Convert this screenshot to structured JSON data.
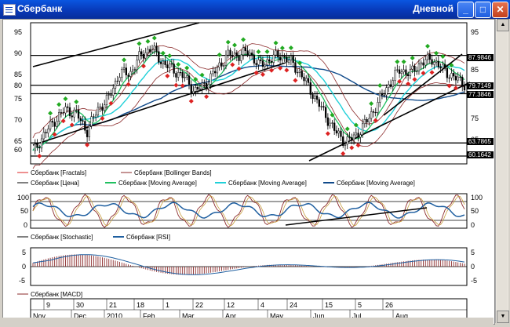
{
  "window": {
    "title": "Сбербанк",
    "period": "Дневной",
    "buttons": {
      "minimize": "_",
      "maximize": "□",
      "close": "✕"
    }
  },
  "price_axis": [
    "95",
    "90",
    "85",
    "80",
    "75",
    "70",
    "65",
    "60"
  ],
  "price_levels": [
    "87.9846",
    "79.7149",
    "77.3846",
    "63.7865",
    "60.1642"
  ],
  "osc_axis": [
    "100",
    "50",
    "0"
  ],
  "macd_axis": [
    "5",
    "0",
    "-5"
  ],
  "legends": {
    "fractals": "Сбербанк [Fractals]",
    "bollinger": "Сбербанк [Bollinger Bands]",
    "price": "Сбербанк [Цена]",
    "ma1": "Сбербанк [Moving Average]",
    "ma2": "Сбербанк [Moving Average]",
    "ma3": "Сбербанк [Moving Average]",
    "stochastic": "Сбербанк [Stochastic]",
    "rsi": "Сбербанк [RSI]",
    "macd": "Сбербанк [MACD]"
  },
  "colors": {
    "price": "#000000",
    "fractal_up": "#22aa22",
    "fractal_down": "#dd2222",
    "bollinger": "#8b2a2a",
    "ma_fast": "#20c060",
    "ma_mid": "#20d0d8",
    "ma_slow": "#104a8a",
    "stochastic": "#8b2a2a",
    "rsi": "#1f5fa0",
    "macd_hist": "#8b2a2a",
    "macd_signal": "#1f5fa0"
  },
  "date_days": [
    "9",
    "30",
    "21",
    "18",
    "1",
    "22",
    "12",
    "4",
    "24",
    "15",
    "5",
    "26"
  ],
  "date_months": [
    "Nov",
    "Dec",
    "2010",
    "Feb",
    "Mar",
    "Apr",
    "May",
    "Jun",
    "Jul",
    "Aug"
  ],
  "chart_data": {
    "type": "candlestick",
    "title": "Сбербанк",
    "period": "Дневной",
    "ylim": [
      58,
      97
    ],
    "horizontal_levels": [
      87.9846,
      79.7149,
      77.3846,
      63.7865,
      60.1642
    ],
    "close_approx": [
      61,
      66,
      70,
      73,
      72,
      67,
      73,
      76,
      83,
      83,
      88,
      90,
      86,
      84,
      82,
      78,
      80,
      84,
      88,
      88,
      89,
      85,
      87,
      88,
      86,
      82,
      77,
      72,
      67,
      64,
      66,
      70,
      75,
      80,
      84,
      83,
      86,
      87,
      84,
      82,
      80
    ]
  }
}
